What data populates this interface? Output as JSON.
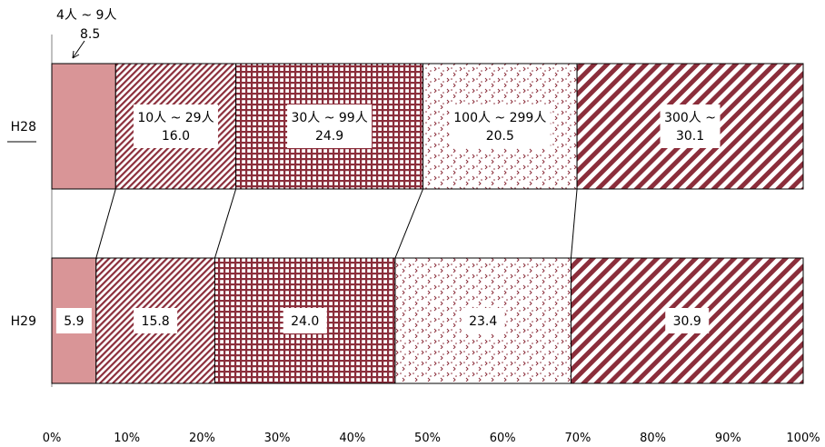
{
  "chart_data": {
    "type": "bar",
    "orientation": "horizontal",
    "stacked": "percent",
    "categories": [
      "H28",
      "H29"
    ],
    "series": [
      {
        "name": "4人 ~ 9人",
        "values": [
          8.5,
          5.9
        ]
      },
      {
        "name": "10人 ~ 29人",
        "values": [
          16.0,
          15.8
        ]
      },
      {
        "name": "30人 ~ 99人",
        "values": [
          24.9,
          24.0
        ]
      },
      {
        "name": "100人 ~ 299人",
        "values": [
          20.5,
          23.4
        ]
      },
      {
        "name": "300人 ~",
        "values": [
          30.1,
          30.9
        ]
      }
    ],
    "series_labels_shown_on": "H28",
    "xlim": [
      0,
      100
    ],
    "xticks": [
      "0%",
      "10%",
      "20%",
      "30%",
      "40%",
      "50%",
      "60%",
      "70%",
      "80%",
      "90%",
      "100%"
    ],
    "title": "",
    "xlabel": "",
    "ylabel": "",
    "grid": false,
    "legend": "none",
    "colors": {
      "dark": "#8b2e3b",
      "pink": "#d99597",
      "outline": "#000000"
    },
    "patterns": [
      "solid",
      "fine-diagonal",
      "grid",
      "dotted-chevrons",
      "wide-diagonal"
    ],
    "connector_lines": true
  }
}
